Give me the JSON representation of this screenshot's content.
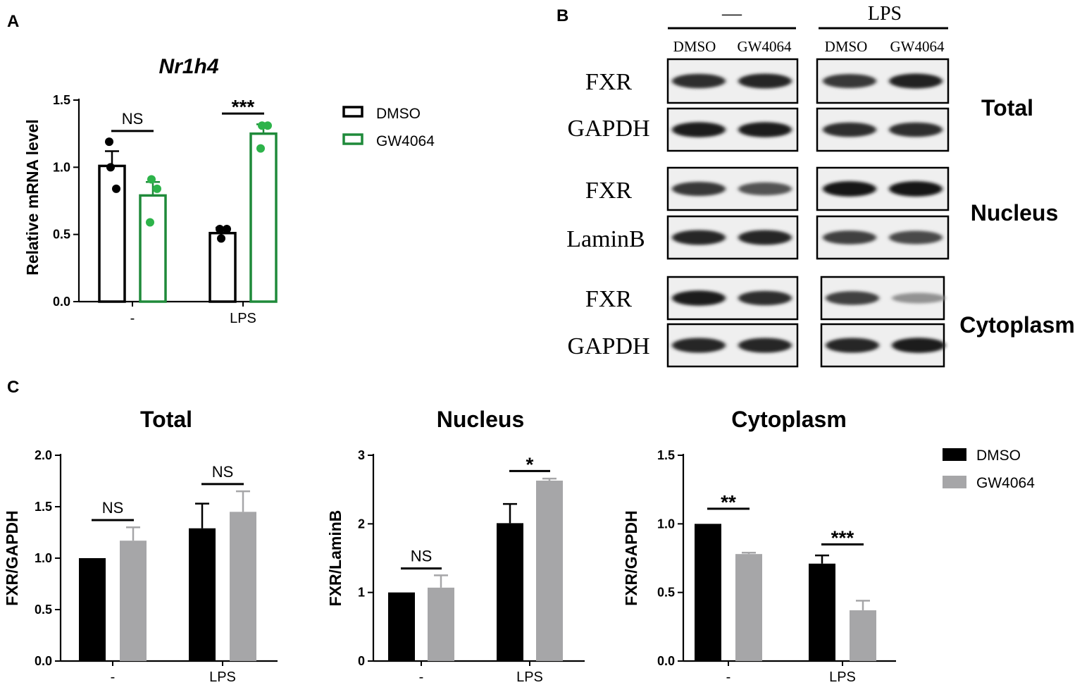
{
  "panels": {
    "a": {
      "letter": "A"
    },
    "b": {
      "letter": "B"
    },
    "c": {
      "letter": "C"
    }
  },
  "blot": {
    "condition_labels": [
      "—",
      "LPS"
    ],
    "lane_labels": [
      "DMSO",
      "GW4064",
      "DMSO",
      "GW4064"
    ],
    "rows": [
      {
        "label": "FXR",
        "bands": [
          0.85,
          0.9,
          0.8,
          0.92
        ]
      },
      {
        "label": "GAPDH",
        "bands": [
          0.95,
          0.95,
          0.85,
          0.85
        ]
      },
      {
        "label": "FXR",
        "bands": [
          0.8,
          0.65,
          0.97,
          0.97
        ]
      },
      {
        "label": "LaminB",
        "bands": [
          0.9,
          0.9,
          0.75,
          0.7
        ]
      },
      {
        "label": "FXR",
        "bands": [
          0.95,
          0.85,
          0.75,
          0.3
        ]
      },
      {
        "label": "GAPDH",
        "bands": [
          0.9,
          0.9,
          0.9,
          0.95
        ]
      }
    ],
    "section_labels": [
      "Total",
      "Nucleus",
      "Cytoplasm"
    ]
  },
  "legend_a": {
    "items": [
      "DMSO",
      "GW4064"
    ],
    "colors": [
      "#000000",
      "#1f8a3a"
    ]
  },
  "legend_c": {
    "items": [
      "DMSO",
      "GW4064"
    ],
    "colors": [
      "#000000",
      "#a6a6a8"
    ]
  },
  "chart_data": [
    {
      "id": "A",
      "type": "bar",
      "title": "Nr1h4",
      "ylabel": "Relative mRNA level",
      "xlabel": "",
      "categories": [
        "-",
        "LPS"
      ],
      "ylim": [
        0,
        1.5
      ],
      "yticks": [
        0.0,
        0.5,
        1.0,
        1.5
      ],
      "ytick_labels": [
        "0.0",
        "0.5",
        "1.0",
        "1.5"
      ],
      "bar_style": "open",
      "series": [
        {
          "name": "DMSO",
          "color": "#000000",
          "values": [
            1.01,
            0.51
          ],
          "errors": [
            0.11,
            0.04
          ],
          "points": [
            [
              1.0,
              0.84,
              1.19
            ],
            [
              0.47,
              0.54,
              0.54
            ]
          ]
        },
        {
          "name": "GW4064",
          "color": "#1f8a3a",
          "point_color": "#2db34a",
          "values": [
            0.79,
            1.25
          ],
          "errors": [
            0.1,
            0.07
          ],
          "points": [
            [
              0.91,
              0.84,
              0.59
            ],
            [
              1.31,
              1.31,
              1.14
            ]
          ]
        }
      ],
      "significance": [
        {
          "category": 0,
          "label": "NS",
          "y": 1.27
        },
        {
          "category": 1,
          "label": "***",
          "y": 1.4
        }
      ]
    },
    {
      "id": "C-Total",
      "type": "bar",
      "title": "Total",
      "ylabel": "FXR/GAPDH",
      "xlabel": "",
      "categories": [
        "-",
        "LPS"
      ],
      "ylim": [
        0,
        2.0
      ],
      "yticks": [
        0.0,
        0.5,
        1.0,
        1.5,
        2.0
      ],
      "ytick_labels": [
        "0.0",
        "0.5",
        "1.0",
        "1.5",
        "2.0"
      ],
      "bar_style": "filled",
      "series": [
        {
          "name": "DMSO",
          "color": "#000000",
          "values": [
            1.0,
            1.29
          ],
          "errors": [
            0,
            0.24
          ]
        },
        {
          "name": "GW4064",
          "color": "#a6a6a8",
          "values": [
            1.17,
            1.45
          ],
          "errors": [
            0.13,
            0.2
          ]
        }
      ],
      "significance": [
        {
          "category": 0,
          "label": "NS",
          "y": 1.37
        },
        {
          "category": 1,
          "label": "NS",
          "y": 1.72
        }
      ]
    },
    {
      "id": "C-Nucleus",
      "type": "bar",
      "title": "Nucleus",
      "ylabel": "FXR/LaminB",
      "xlabel": "",
      "categories": [
        "-",
        "LPS"
      ],
      "ylim": [
        0,
        3
      ],
      "yticks": [
        0,
        1,
        2,
        3
      ],
      "ytick_labels": [
        "0",
        "1",
        "2",
        "3"
      ],
      "bar_style": "filled",
      "series": [
        {
          "name": "DMSO",
          "color": "#000000",
          "values": [
            1.0,
            2.01
          ],
          "errors": [
            0,
            0.28
          ]
        },
        {
          "name": "GW4064",
          "color": "#a6a6a8",
          "values": [
            1.07,
            2.63
          ],
          "errors": [
            0.18,
            0.03
          ]
        }
      ],
      "significance": [
        {
          "category": 0,
          "label": "NS",
          "y": 1.35
        },
        {
          "category": 1,
          "label": "*",
          "y": 2.77
        }
      ]
    },
    {
      "id": "C-Cytoplasm",
      "type": "bar",
      "title": "Cytoplasm",
      "ylabel": "FXR/GAPDH",
      "xlabel": "",
      "categories": [
        "-",
        "LPS"
      ],
      "ylim": [
        0,
        1.5
      ],
      "yticks": [
        0.0,
        0.5,
        1.0,
        1.5
      ],
      "ytick_labels": [
        "0.0",
        "0.5",
        "1.0",
        "1.5"
      ],
      "bar_style": "filled",
      "series": [
        {
          "name": "DMSO",
          "color": "#000000",
          "values": [
            1.0,
            0.71
          ],
          "errors": [
            0,
            0.06
          ]
        },
        {
          "name": "GW4064",
          "color": "#a6a6a8",
          "values": [
            0.78,
            0.37
          ],
          "errors": [
            0.01,
            0.07
          ]
        }
      ],
      "significance": [
        {
          "category": 0,
          "label": "**",
          "y": 1.11
        },
        {
          "category": 1,
          "label": "***",
          "y": 0.85
        }
      ]
    }
  ]
}
